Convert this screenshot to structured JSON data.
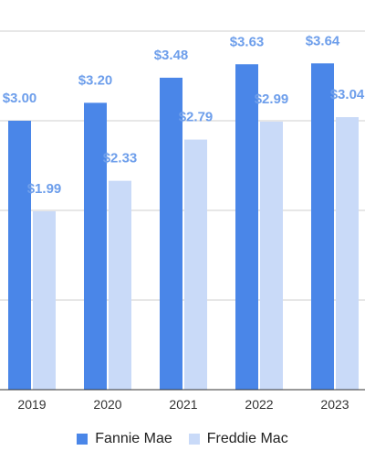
{
  "chart_data": {
    "type": "bar",
    "categories": [
      "2019",
      "2020",
      "2021",
      "2022",
      "2023"
    ],
    "series": [
      {
        "name": "Fannie Mae",
        "values": [
          3.0,
          3.2,
          3.48,
          3.63,
          3.64
        ],
        "labels": [
          "$3.00",
          "$3.20",
          "$3.48",
          "$3.63",
          "$3.64"
        ],
        "color": "#4a86e8"
      },
      {
        "name": "Freddie Mac",
        "values": [
          1.99,
          2.33,
          2.79,
          2.99,
          3.04
        ],
        "labels": [
          "$1.99",
          "$2.33",
          "$2.79",
          "$2.99",
          "$3.04"
        ],
        "color": "#c9daf8"
      }
    ],
    "ylim": [
      0,
      4
    ],
    "grid": true,
    "legend_position": "bottom",
    "label_color": "#6d9eeb"
  }
}
